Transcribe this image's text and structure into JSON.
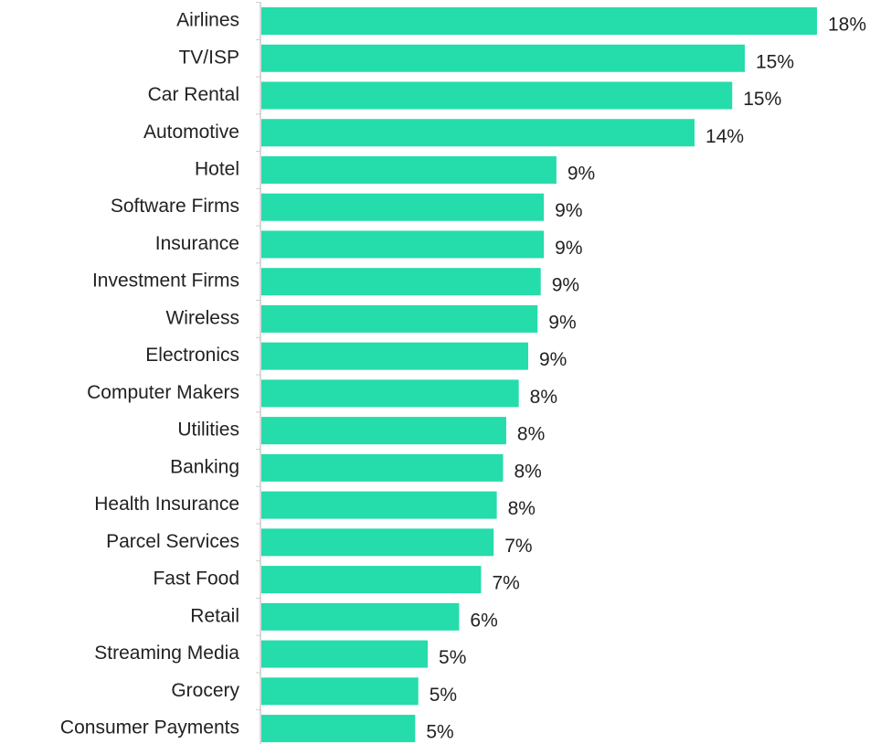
{
  "chart_data": {
    "type": "barh",
    "categories": [
      "Airlines",
      "TV/ISP",
      "Car Rental",
      "Automotive",
      "Hotel",
      "Software Firms",
      "Insurance",
      "Investment Firms",
      "Wireless",
      "Electronics",
      "Computer Makers",
      "Utilities",
      "Banking",
      "Health Insurance",
      "Parcel Services",
      "Fast Food",
      "Retail",
      "Streaming Media",
      "Grocery",
      "Consumer Payments"
    ],
    "values": [
      17.7,
      15.4,
      15.0,
      13.8,
      9.4,
      9.0,
      9.0,
      8.9,
      8.8,
      8.5,
      8.2,
      7.8,
      7.7,
      7.5,
      7.4,
      7.0,
      6.3,
      5.3,
      5.0,
      4.9
    ],
    "value_labels": [
      "18%",
      "15%",
      "15%",
      "14%",
      "9%",
      "9%",
      "9%",
      "9%",
      "9%",
      "9%",
      "8%",
      "8%",
      "8%",
      "8%",
      "7%",
      "7%",
      "6%",
      "5%",
      "5%",
      "5%"
    ],
    "color": "#25dcab",
    "xlim": [
      0,
      20
    ]
  }
}
